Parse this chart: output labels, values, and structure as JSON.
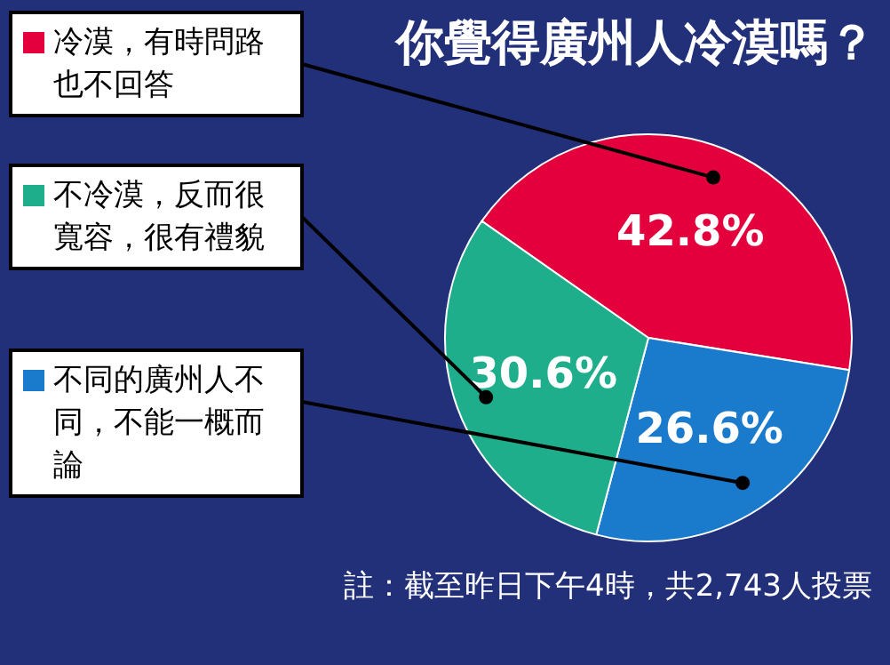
{
  "chart_data": {
    "type": "pie",
    "title": "你覺得廣州人冷漠嗎？",
    "categories": [
      "冷漠，有時問路也不回答",
      "不同的廣州人不同，不能一概而論",
      "不冷漠，反而很寬容，很有禮貌"
    ],
    "values": [
      42.8,
      26.6,
      30.6
    ],
    "colors": [
      "#e4003c",
      "#1a7acb",
      "#1fae8c"
    ],
    "value_labels": [
      "42.8%",
      "26.6%",
      "30.6%"
    ],
    "legend": "left",
    "annotations": [
      "註：截至昨日下午4時，共2,743人投票"
    ]
  }
}
